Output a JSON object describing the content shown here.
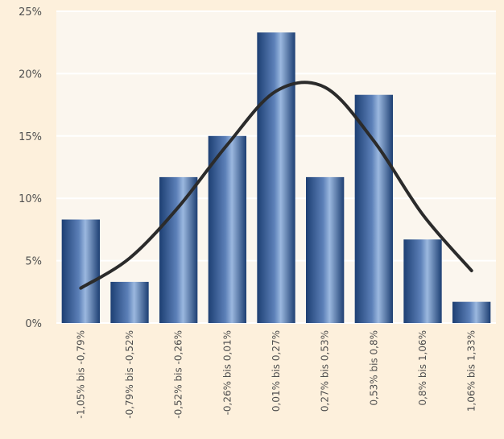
{
  "chart_data": {
    "type": "bar",
    "categories": [
      "-1,05% bis -0,79%",
      "-0,79% bis -0,52%",
      "-0,52% bis -0,26%",
      "-0,26% bis 0,01%",
      "0,01% bis 0,27%",
      "0,27% bis 0,53%",
      "0,53% bis 0,8%",
      "0,8% bis 1,06%",
      "1,06% bis 1,33%"
    ],
    "values": [
      8.3,
      3.3,
      11.7,
      15.0,
      23.3,
      11.7,
      18.3,
      6.7,
      1.7
    ],
    "curve": [
      2.8,
      5.2,
      9.3,
      14.3,
      18.6,
      18.9,
      14.6,
      8.7,
      4.2
    ],
    "ylim": [
      0,
      25
    ],
    "yticks": [
      0,
      5,
      10,
      15,
      20,
      25
    ],
    "ytick_labels": [
      "0%",
      "5%",
      "10%",
      "15%",
      "20%",
      "25%"
    ],
    "title": "",
    "xlabel": "",
    "ylabel": "",
    "grid": true,
    "legend": "none",
    "colors": {
      "background": "#fdf0dc",
      "plot_background": "#fbf6ee",
      "gridline": "#ffffff",
      "bar_dark": "#1d3f73",
      "bar_light": "#9bb8df",
      "curve": "#2b2b2b",
      "text": "#505050"
    }
  }
}
